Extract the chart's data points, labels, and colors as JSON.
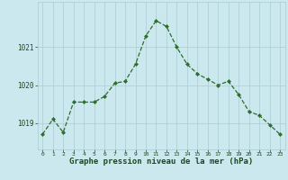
{
  "hours": [
    0,
    1,
    2,
    3,
    4,
    5,
    6,
    7,
    8,
    9,
    10,
    11,
    12,
    13,
    14,
    15,
    16,
    17,
    18,
    19,
    20,
    21,
    22,
    23
  ],
  "pressure": [
    1018.7,
    1019.1,
    1018.75,
    1019.55,
    1019.55,
    1019.55,
    1019.7,
    1020.05,
    1020.1,
    1020.55,
    1021.3,
    1021.7,
    1021.55,
    1021.0,
    1020.55,
    1020.3,
    1020.15,
    1020.0,
    1020.1,
    1019.75,
    1019.3,
    1019.2,
    1018.95,
    1018.7
  ],
  "line_color": "#2d6e2d",
  "marker": "D",
  "marker_size": 2.0,
  "bg_color": "#cce8ef",
  "grid_color": "#aaccd4",
  "xlabel": "Graphe pression niveau de la mer (hPa)",
  "xlabel_fontsize": 6.5,
  "xlabel_color": "#1a4a1a",
  "tick_color": "#1a4a1a",
  "ytick_labels": [
    "1019",
    "1020",
    "1021"
  ],
  "ytick_values": [
    1019,
    1020,
    1021
  ],
  "ylim_min": 1018.3,
  "ylim_max": 1022.2,
  "xlim_min": -0.5,
  "xlim_max": 23.5
}
